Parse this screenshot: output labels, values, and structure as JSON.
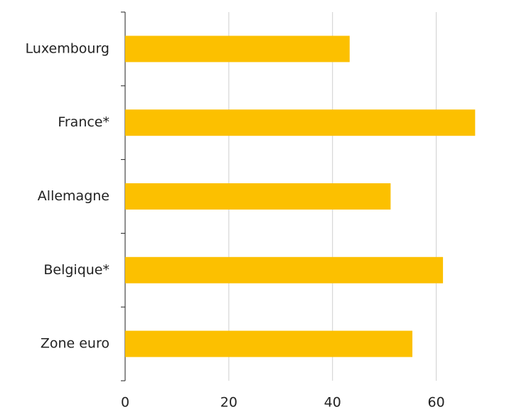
{
  "chart_data": {
    "type": "bar",
    "orientation": "horizontal",
    "categories": [
      "Luxembourg",
      "France*",
      "Allemagne",
      "Belgique*",
      "Zone euro"
    ],
    "values": [
      43.3,
      67.5,
      51.2,
      61.3,
      55.4
    ],
    "color": "#fcc000",
    "xlim": [
      0,
      75
    ],
    "xticks": [
      0,
      20,
      40,
      60
    ],
    "grid": true
  }
}
